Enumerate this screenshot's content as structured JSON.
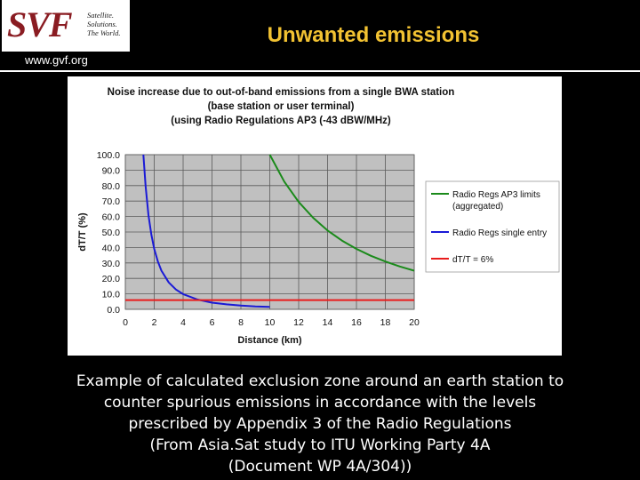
{
  "header": {
    "logo_text": "SVF",
    "logo_tagline": [
      "Satellite.",
      "Solutions.",
      "The World."
    ],
    "url": "www.gvf.org",
    "title": "Unwanted emissions"
  },
  "caption": [
    "Example of calculated exclusion zone around an earth station to",
    "counter spurious emissions in accordance with the levels",
    "prescribed by Appendix 3 of the Radio Regulations",
    "(From Asia.Sat study to ITU Working Party 4A",
    "(Document WP 4A/304))"
  ],
  "colors": {
    "title": "#f2c232",
    "logo": "#8a1c22",
    "plot_background": "#c0c0c0"
  },
  "chart_data": {
    "type": "line",
    "title": [
      "Noise increase due to out-of-band emissions from a single BWA station",
      "(base station or user terminal)",
      "(using Radio Regulations AP3 (-43 dBW/MHz)"
    ],
    "xlabel": "Distance (km)",
    "ylabel": "dT/T (%)",
    "xlim": [
      0,
      20
    ],
    "ylim": [
      0,
      100
    ],
    "xticks": [
      0,
      2,
      4,
      6,
      8,
      10,
      12,
      14,
      16,
      18,
      20
    ],
    "yticks": [
      0,
      10,
      20,
      30,
      40,
      50,
      60,
      70,
      80,
      90,
      100
    ],
    "xtick_labels": [
      "0",
      "2",
      "4",
      "6",
      "8",
      "10",
      "12",
      "14",
      "16",
      "18",
      "20"
    ],
    "ytick_labels": [
      "0.0",
      "10.0",
      "20.0",
      "30.0",
      "40.0",
      "50.0",
      "60.0",
      "70.0",
      "80.0",
      "90.0",
      "100.0"
    ],
    "grid": true,
    "legend_position": "right",
    "series": [
      {
        "name": "Radio Regs AP3 limits (aggregated)",
        "legend_lines": [
          "Radio Regs AP3 limits",
          "(aggregated)"
        ],
        "color": "#1a8a1a",
        "x": [
          10,
          11,
          12,
          13,
          14,
          15,
          16,
          17,
          18,
          19,
          20
        ],
        "y": [
          100,
          82.6,
          69.4,
          59.2,
          51.0,
          44.4,
          39.1,
          34.6,
          30.9,
          27.7,
          25.0
        ]
      },
      {
        "name": "Radio Regs single entry",
        "legend_lines": [
          "Radio Regs single entry"
        ],
        "color": "#1a1ad6",
        "x": [
          1.25,
          1.4,
          1.6,
          1.8,
          2.0,
          2.25,
          2.5,
          3.0,
          3.5,
          4.0,
          5.0,
          6.0,
          7.0,
          8.0,
          9.0,
          10.0
        ],
        "y": [
          100,
          79.7,
          61.0,
          48.2,
          39.1,
          30.9,
          25.0,
          17.4,
          12.8,
          9.8,
          6.3,
          4.3,
          3.2,
          2.4,
          1.9,
          1.6
        ]
      },
      {
        "name": "dT/T = 6%",
        "legend_lines": [
          "dT/T = 6%"
        ],
        "color": "#e81c1c",
        "x": [
          0,
          20
        ],
        "y": [
          6,
          6
        ]
      }
    ]
  }
}
